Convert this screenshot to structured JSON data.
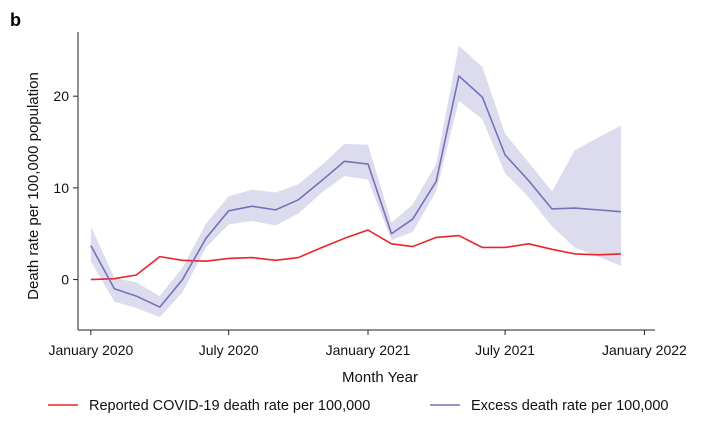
{
  "chart_data": {
    "type": "line",
    "panel_label": "b",
    "xlabel": "Month Year",
    "ylabel": "Death rate per 100,000 population",
    "xlim": [
      "2019-12-15",
      "2022-01-15"
    ],
    "ylim": [
      -5.5,
      27
    ],
    "x_ticks": [
      {
        "date": "2020-01-01",
        "label": "January 2020"
      },
      {
        "date": "2020-07-01",
        "label": "July 2020"
      },
      {
        "date": "2021-01-01",
        "label": "January 2021"
      },
      {
        "date": "2021-07-01",
        "label": "July 2021"
      },
      {
        "date": "2022-01-01",
        "label": "January 2022"
      }
    ],
    "y_ticks": [
      {
        "value": 0,
        "label": "0"
      },
      {
        "value": 10,
        "label": "10"
      },
      {
        "value": 20,
        "label": "20"
      }
    ],
    "grid": false,
    "legend_position": "bottom",
    "x": [
      "2020-01-01",
      "2020-02-01",
      "2020-03-01",
      "2020-04-01",
      "2020-05-01",
      "2020-06-01",
      "2020-07-01",
      "2020-08-01",
      "2020-09-01",
      "2020-10-01",
      "2020-11-01",
      "2020-12-01",
      "2021-01-01",
      "2021-02-01",
      "2021-03-01",
      "2021-04-01",
      "2021-05-01",
      "2021-06-01",
      "2021-07-01",
      "2021-08-01",
      "2021-09-01",
      "2021-10-01",
      "2021-11-01",
      "2021-12-01"
    ],
    "series": [
      {
        "name": "Reported COVID-19 death rate per 100,000",
        "color": "#e8252a",
        "values": [
          0.0,
          0.1,
          0.5,
          2.5,
          2.1,
          2.0,
          2.3,
          2.4,
          2.1,
          2.4,
          3.5,
          4.5,
          5.4,
          3.9,
          3.6,
          4.6,
          4.8,
          3.5,
          3.5,
          3.9,
          3.3,
          2.8,
          2.7,
          2.8
        ]
      },
      {
        "name": "Excess death rate per 100,000",
        "color": "#7771b8",
        "band_color": "#dcdcee",
        "values": [
          3.7,
          -1.0,
          -1.8,
          -3.0,
          0.0,
          4.5,
          7.5,
          8.0,
          7.6,
          8.7,
          10.8,
          12.9,
          12.6,
          5.0,
          6.6,
          10.7,
          22.2,
          19.9,
          13.6,
          10.8,
          7.7,
          7.8,
          7.6,
          7.4
        ],
        "lower": [
          2.0,
          -2.4,
          -3.1,
          -4.1,
          -1.4,
          3.5,
          6.0,
          6.4,
          5.9,
          7.2,
          9.5,
          11.3,
          10.9,
          4.3,
          5.2,
          9.6,
          19.5,
          17.5,
          11.6,
          9.0,
          5.8,
          3.5,
          2.5,
          1.5
        ],
        "upper": [
          5.8,
          0.2,
          -0.3,
          -1.8,
          1.3,
          6.1,
          9.1,
          9.8,
          9.5,
          10.4,
          12.5,
          14.8,
          14.7,
          6.2,
          8.2,
          12.6,
          25.5,
          23.2,
          15.9,
          12.8,
          9.6,
          14.1,
          15.5,
          16.8
        ]
      }
    ]
  }
}
